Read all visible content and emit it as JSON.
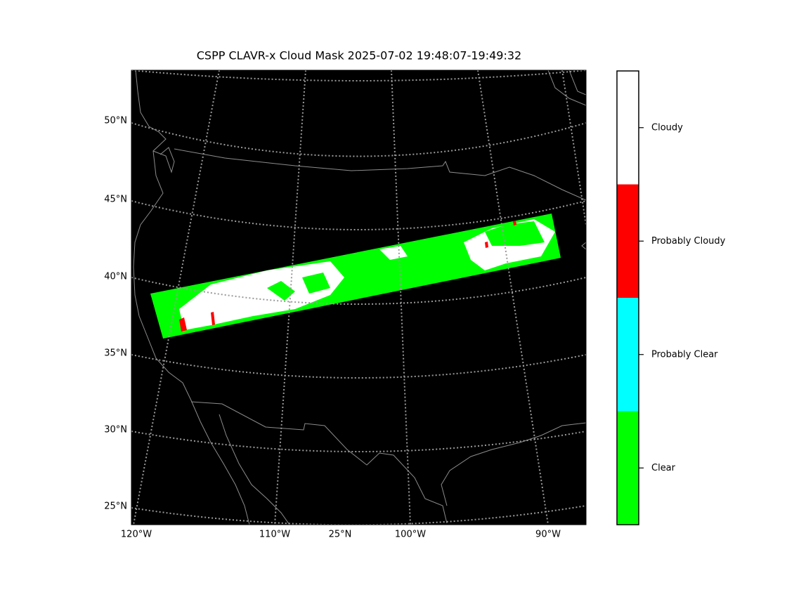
{
  "title": "CSPP CLAVR-x Cloud Mask 2025-07-02 19:48:07-19:49:32",
  "map": {
    "lat_labels": [
      "50°N",
      "45°N",
      "40°N",
      "35°N",
      "30°N",
      "25°N"
    ],
    "lon_labels": [
      "120°W",
      "110°W",
      "25°N",
      "100°W",
      "90°W"
    ]
  },
  "colorbar": {
    "labels": [
      "Cloudy",
      "Probably Cloudy",
      "Probably Clear",
      "Clear"
    ],
    "colors": [
      "#ffffff",
      "#ff0000",
      "#00ffff",
      "#00ff00"
    ]
  }
}
